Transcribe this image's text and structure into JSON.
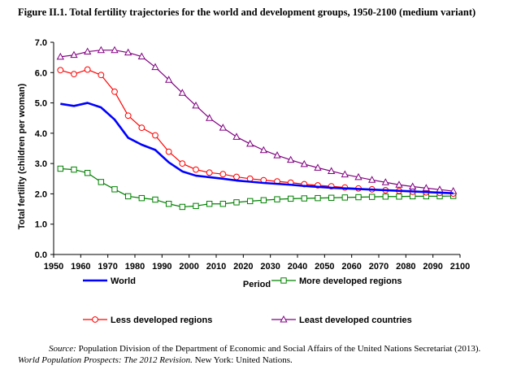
{
  "figure": {
    "title": "Figure II.1. Total fertility trajectories for the world and development groups, 1950-2100 (medium variant)"
  },
  "source": {
    "label": "Source:",
    "text1": " Population Division of the Department of Economic and Social Affairs of the United Nations Secretariat (2013). ",
    "italic_title": "World Population Prospects: The 2012 Revision.",
    "text2": " New York: United Nations."
  },
  "chart_data": {
    "type": "line",
    "xlabel": "Period",
    "ylabel": "Total fertility (children per woman)",
    "xlim": [
      1950,
      2100
    ],
    "ylim": [
      0,
      7
    ],
    "x_ticks": [
      "1950",
      "1960",
      "1970",
      "1980",
      "1990",
      "2000",
      "2010",
      "2020",
      "2030",
      "2040",
      "2050",
      "2060",
      "2070",
      "2080",
      "2090",
      "2100"
    ],
    "y_ticks": [
      "0.0",
      "1.0",
      "2.0",
      "3.0",
      "4.0",
      "5.0",
      "6.0",
      "7.0"
    ],
    "x": [
      1952.5,
      1957.5,
      1962.5,
      1967.5,
      1972.5,
      1977.5,
      1982.5,
      1987.5,
      1992.5,
      1997.5,
      2002.5,
      2007.5,
      2012.5,
      2017.5,
      2022.5,
      2027.5,
      2032.5,
      2037.5,
      2042.5,
      2047.5,
      2052.5,
      2057.5,
      2062.5,
      2067.5,
      2072.5,
      2077.5,
      2082.5,
      2087.5,
      2092.5,
      2097.5
    ],
    "grid": false,
    "legend_position": "bottom",
    "series": [
      {
        "name": "World",
        "color": "#0000ff",
        "marker": "none",
        "width": 2.6,
        "values": [
          4.97,
          4.9,
          5.0,
          4.85,
          4.45,
          3.85,
          3.62,
          3.45,
          3.04,
          2.74,
          2.6,
          2.55,
          2.5,
          2.44,
          2.4,
          2.36,
          2.33,
          2.3,
          2.26,
          2.23,
          2.2,
          2.18,
          2.16,
          2.14,
          2.12,
          2.1,
          2.08,
          2.06,
          2.04,
          2.02
        ]
      },
      {
        "name": "More developed regions",
        "color": "#008000",
        "marker": "square",
        "width": 1.2,
        "values": [
          2.83,
          2.8,
          2.69,
          2.39,
          2.15,
          1.92,
          1.86,
          1.81,
          1.67,
          1.57,
          1.6,
          1.67,
          1.67,
          1.72,
          1.76,
          1.79,
          1.82,
          1.84,
          1.85,
          1.86,
          1.87,
          1.88,
          1.89,
          1.9,
          1.91,
          1.91,
          1.92,
          1.92,
          1.92,
          1.93
        ]
      },
      {
        "name": "Less developed regions",
        "color": "#ff0000",
        "marker": "circle",
        "width": 1.2,
        "values": [
          6.08,
          5.95,
          6.1,
          5.92,
          5.37,
          4.58,
          4.18,
          3.93,
          3.39,
          3.0,
          2.8,
          2.7,
          2.65,
          2.56,
          2.5,
          2.45,
          2.41,
          2.37,
          2.32,
          2.28,
          2.25,
          2.21,
          2.18,
          2.15,
          2.12,
          2.1,
          2.07,
          2.05,
          2.03,
          2.01
        ]
      },
      {
        "name": "Least developed countries",
        "color": "#800080",
        "marker": "triangle",
        "width": 1.2,
        "values": [
          6.52,
          6.58,
          6.69,
          6.74,
          6.74,
          6.66,
          6.53,
          6.18,
          5.76,
          5.33,
          4.91,
          4.5,
          4.18,
          3.88,
          3.65,
          3.44,
          3.27,
          3.12,
          2.98,
          2.86,
          2.75,
          2.64,
          2.55,
          2.46,
          2.38,
          2.3,
          2.24,
          2.19,
          2.14,
          2.09
        ]
      }
    ]
  }
}
